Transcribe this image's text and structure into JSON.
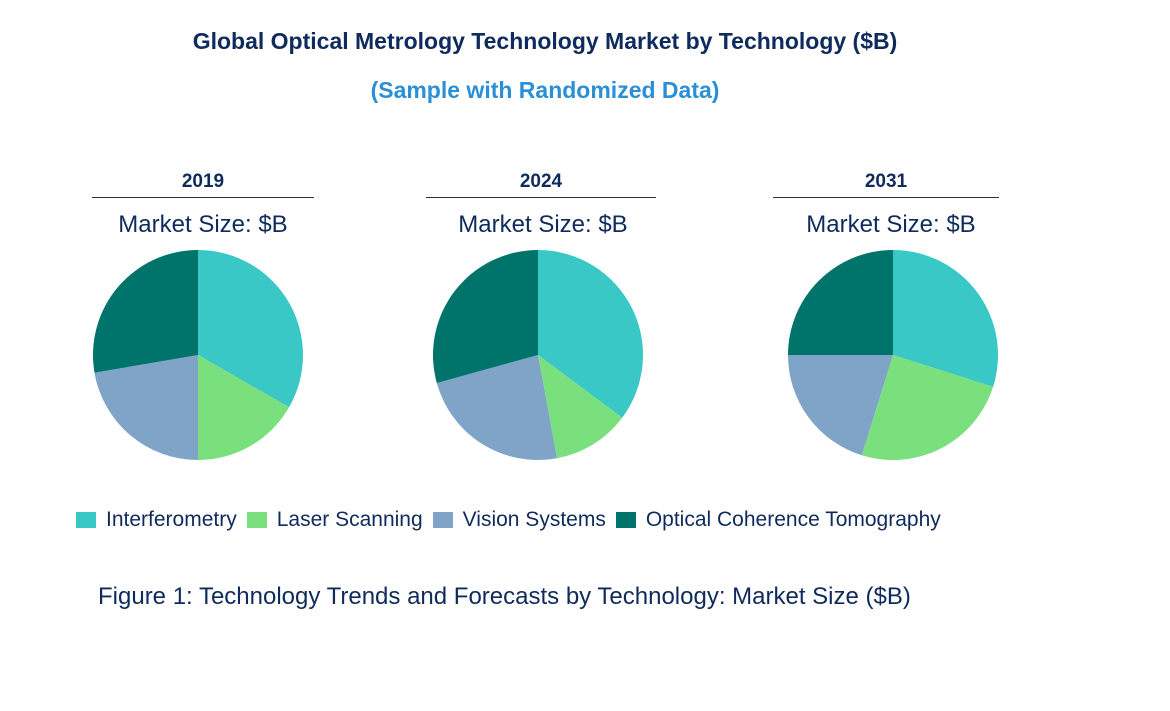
{
  "chart_data": {
    "type": "pie",
    "title": "Global Optical Metrology Technology Market by Technology ($B)",
    "subtitle": "(Sample with Randomized Data)",
    "caption": "Figure 1: Technology Trends and Forecasts by Technology: Market Size ($B)",
    "legend_position": "bottom",
    "categories": [
      "Interferometry",
      "Laser Scanning",
      "Vision Systems",
      "Optical Coherence Tomography"
    ],
    "colors": [
      "#3ac8c6",
      "#7ae07e",
      "#7fa4c8",
      "#00736b"
    ],
    "pies": [
      {
        "year": "2019",
        "label": "Market Size: $B",
        "values": [
          33.3,
          16.7,
          22.3,
          27.7
        ]
      },
      {
        "year": "2024",
        "label": "Market Size: $B",
        "values": [
          35.2,
          11.9,
          23.6,
          29.3
        ]
      },
      {
        "year": "2031",
        "label": "Market Size: $B",
        "values": [
          29.9,
          24.9,
          20.2,
          25.0
        ]
      }
    ]
  }
}
